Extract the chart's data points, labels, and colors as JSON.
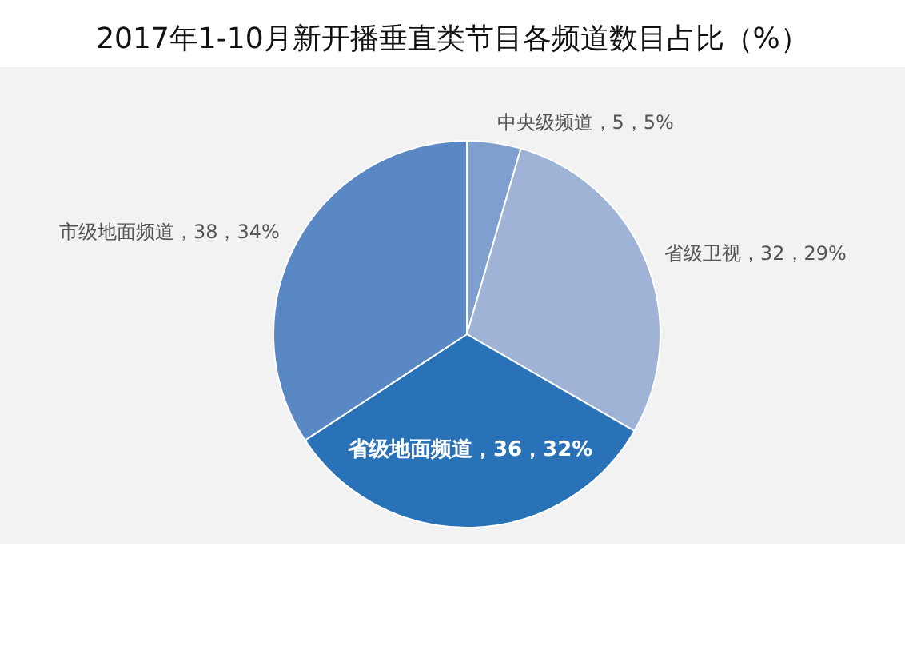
{
  "chart_data": {
    "type": "pie",
    "title": "2017年1-10月新开播垂直类节目各频道数目占比（%）",
    "categories": [
      "中央级频道",
      "省级卫视",
      "省级地面频道",
      "市级地面频道"
    ],
    "values": [
      5,
      32,
      36,
      38
    ],
    "value_labels": [
      "5，5%",
      "32，29%",
      "36，32%",
      "38，34%"
    ],
    "colors": [
      "#7f9fcf",
      "#9fb3d6",
      "#2a72b8",
      "#5a88c4"
    ]
  }
}
